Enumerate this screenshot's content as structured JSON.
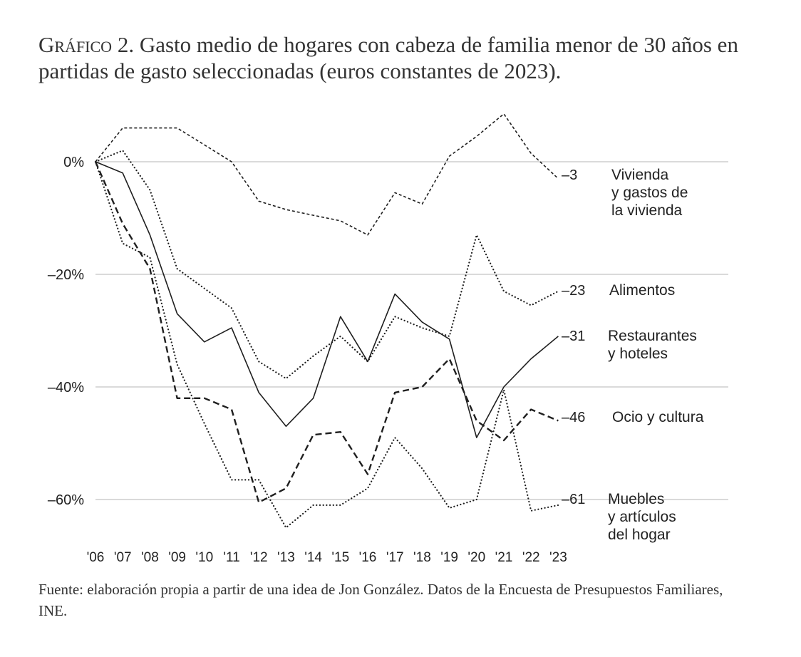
{
  "title": {
    "prefix": "Gráfico 2.",
    "text": "Gasto medio de hogares con cabeza de familia menor de 30 años en partidas de gasto seleccionadas (euros constantes de 2023)."
  },
  "source": {
    "text": "Fuente: elaboración propia a partir de una idea de Jon González. Datos de la Encuesta de Presupuestos Familiares,",
    "abbr": "INE."
  },
  "chart_data": {
    "type": "line",
    "x": [
      "'06",
      "'07",
      "'08",
      "'09",
      "'10",
      "'11",
      "'12",
      "'13",
      "'14",
      "'15",
      "'16",
      "'17",
      "'18",
      "'19",
      "'20",
      "'21",
      "'22",
      "'23"
    ],
    "ylim": [
      -70,
      10
    ],
    "y_ticks": [
      0,
      -20,
      -40,
      -60
    ],
    "y_tick_labels": [
      "0%",
      "–20%",
      "–40%",
      "–60%"
    ],
    "grid": "horizontal",
    "legend": "right end labels",
    "series": [
      {
        "name": "Vivienda y gastos de la vivienda",
        "label_lines": [
          "Vivienda",
          "y gastos de",
          "la vivienda"
        ],
        "end_label": "–3",
        "style": "short-dash",
        "values": [
          0,
          6,
          6,
          6,
          3,
          0,
          -7,
          -8.5,
          -9.5,
          -10.5,
          -13,
          -5.5,
          -7.5,
          1,
          4.5,
          8.5,
          1.5,
          -3
        ]
      },
      {
        "name": "Alimentos",
        "label_lines": [
          "Alimentos"
        ],
        "end_label": "–23",
        "style": "dotted",
        "values": [
          0,
          2,
          -5,
          -19,
          -22.5,
          -26,
          -35.5,
          -38.5,
          -34.5,
          -31,
          -35.5,
          -27.5,
          -29.5,
          -31,
          -13,
          -23,
          -25.5,
          -23
        ]
      },
      {
        "name": "Restaurantes y hoteles",
        "label_lines": [
          "Restaurantes",
          "y hoteles"
        ],
        "end_label": "–31",
        "style": "solid",
        "values": [
          0,
          -2,
          -13,
          -27,
          -32,
          -29.5,
          -41,
          -47,
          -42,
          -27.5,
          -35.5,
          -23.5,
          -28.5,
          -31.5,
          -49,
          -40,
          -35,
          -31
        ]
      },
      {
        "name": "Ocio y cultura",
        "label_lines": [
          "Ocio y cultura"
        ],
        "end_label": "–46",
        "style": "long-dash",
        "values": [
          0,
          -11,
          -19,
          -42,
          -42,
          -44,
          -60.5,
          -58,
          -48.5,
          -48,
          -55.5,
          -41,
          -40,
          -35,
          -46,
          -49.5,
          -44,
          -46
        ]
      },
      {
        "name": "Muebles y artículos del hogar",
        "label_lines": [
          "Muebles",
          "y artículos",
          "del hogar"
        ],
        "end_label": "–61",
        "style": "dotted",
        "values": [
          0,
          -14.5,
          -17,
          -36,
          -46.5,
          -56.5,
          -56.5,
          -65,
          -61,
          -61,
          -58,
          -49,
          -54.5,
          -61.5,
          -60,
          -40.5,
          -62,
          -61
        ]
      }
    ]
  }
}
